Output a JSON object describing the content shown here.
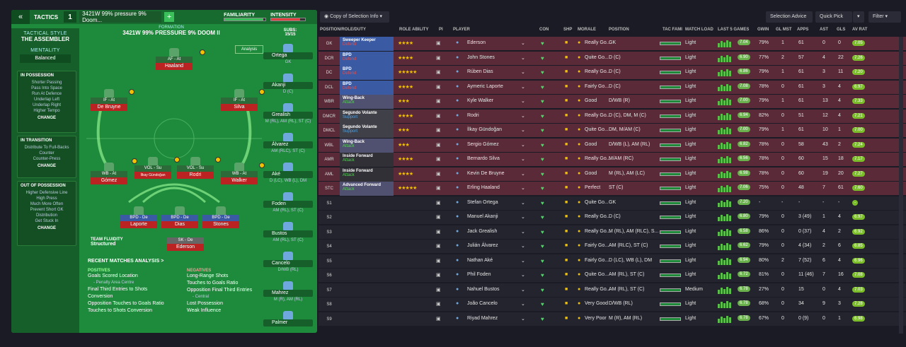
{
  "header": {
    "back_icon": "double-chevron-left-icon",
    "tactics_label": "TACTICS",
    "slot_number": "1",
    "tactic_name": "3421W 99% pressure 9% Doom...",
    "add_label": "+",
    "familiarity_label": "FAMILIARITY",
    "intensity_label": "INTENSITY",
    "familiarity_level": 0.95,
    "intensity_level": 0.85
  },
  "side": {
    "tactical_style_label": "TACTICAL STYLE",
    "tactical_style_value": "THE ASSEMBLER",
    "mentality_label": "MENTALITY",
    "mentality_value": "Balanced",
    "in_possession_title": "IN POSSESSION",
    "in_possession_items": [
      "Shorter Passing",
      "Pass Into Space",
      "Run At Defence",
      "Underlap Left",
      "Underlap Right",
      "Higher Tempo"
    ],
    "in_transition_title": "IN TRANSITION",
    "in_transition_items": [
      "Distribute To Full-Backs",
      "Counter",
      "Counter-Press"
    ],
    "out_possession_title": "OUT OF POSSESSION",
    "out_possession_items": [
      "Higher Defensive Line",
      "High Press",
      "Much More Often",
      "Prevent Short GK",
      "Distribution",
      "Get Stuck In"
    ],
    "change_label": "CHANGE"
  },
  "formation": {
    "label": "FORMATION",
    "name": "3421W 99% PRESSURE 9% DOOM II",
    "analysis_label": "Analysis",
    "team_fluidity_label": "TEAM FLUIDITY",
    "team_fluidity_value": "Structured",
    "players": [
      {
        "role": "AF - At",
        "name": "Haaland"
      },
      {
        "role": "IF - At",
        "name": "De Bruyne"
      },
      {
        "role": "IF - At",
        "name": "Silva"
      },
      {
        "role": "WB - At",
        "name": "Gómez"
      },
      {
        "role": "VOL - Su",
        "name": "İlkay Gündoğan"
      },
      {
        "role": "VOL - Su",
        "name": "Rodri"
      },
      {
        "role": "WB - At",
        "name": "Walker"
      },
      {
        "role": "BPD - De",
        "name": "Laporte"
      },
      {
        "role": "BPD - De",
        "name": "Dias"
      },
      {
        "role": "BPD - De",
        "name": "Stones"
      },
      {
        "role": "SK - De",
        "name": "Ederson"
      }
    ]
  },
  "subs": {
    "label": "SUBS:",
    "count": "15/15",
    "items": [
      {
        "name": "Ortega",
        "pos": "GK"
      },
      {
        "name": "Akanji",
        "pos": "D (C)"
      },
      {
        "name": "Grealish",
        "pos": "M (RL), AM (RL), ST (C)"
      },
      {
        "name": "Álvarez",
        "pos": "AM (RLC), ST (C)"
      },
      {
        "name": "Aké",
        "pos": "D (LC), WB (L), DM"
      },
      {
        "name": "Foden",
        "pos": "AM (RL), ST (C)"
      },
      {
        "name": "Bustos",
        "pos": "AM (RL), ST (C)"
      },
      {
        "name": "Cancelo",
        "pos": "D/WB (RL)"
      },
      {
        "name": "Mahrez",
        "pos": "M (R), AM (RL)"
      },
      {
        "name": "Palmer",
        "pos": ""
      }
    ]
  },
  "analysis": {
    "title": "RECENT MATCHES ANALYSIS >",
    "positives_label": "POSITIVES",
    "positives": [
      "Goals Scored Location",
      "- Penalty Area Centre",
      "Final Third Entries to Shots Conversion",
      "Opposition Touches to Goals Ratio",
      "Touches to Shots Conversion"
    ],
    "negatives_label": "NEGATIVES",
    "negatives": [
      "Long-Range Shots",
      "Touches to Goals Ratio",
      "Opposition Final Third Entries",
      "- Central",
      "Lost Possession",
      "Weak Influence"
    ]
  },
  "toolbar": {
    "view_label": "Copy of Selection Info",
    "selection_advice": "Selection Advice",
    "quick_pick": "Quick Pick",
    "filter": "Filter"
  },
  "columns": [
    "POSITION/ROLE/DUTY",
    "ROLE ABILITY",
    "PI",
    "PLAYER",
    "CON",
    "SHP",
    "MORALE",
    "POSITION",
    "TAC FAMI",
    "MATCH LOAD",
    "LAST 5 GAMES",
    "GWIN",
    "GL MST",
    "APPS",
    "AST",
    "GLS",
    "AV RAT"
  ],
  "rows": [
    {
      "pos": "GK",
      "role": "Sweeper Keeper",
      "duty": "Defend",
      "stars": "★★★★",
      "player": "Ederson",
      "morale": "Really Go...",
      "position": "GK",
      "load": "Light",
      "form": "7.04",
      "gwin": "79%",
      "glmst": "1",
      "apps": "61",
      "ast": "0",
      "gls": "0",
      "avrat": "7.05"
    },
    {
      "pos": "DCR",
      "role": "BPD",
      "duty": "Defend",
      "stars": "★★★★",
      "player": "John Stones",
      "morale": "Quite Go...",
      "position": "D (C)",
      "load": "Light",
      "form": "6.90",
      "gwin": "77%",
      "glmst": "2",
      "apps": "57",
      "ast": "4",
      "gls": "22",
      "avrat": "7.26"
    },
    {
      "pos": "DC",
      "role": "BPD",
      "duty": "Defend",
      "stars": "★★★★★",
      "player": "Rúben Dias",
      "morale": "Really Go...",
      "position": "D (C)",
      "load": "Light",
      "form": "6.86",
      "gwin": "79%",
      "glmst": "1",
      "apps": "61",
      "ast": "3",
      "gls": "11",
      "avrat": "7.20"
    },
    {
      "pos": "DCL",
      "role": "BPD",
      "duty": "Defend",
      "stars": "★★★★",
      "player": "Aymeric Laporte",
      "morale": "Fairly Go...",
      "position": "D (C)",
      "load": "Light",
      "form": "7.08",
      "gwin": "78%",
      "glmst": "0",
      "apps": "61",
      "ast": "3",
      "gls": "4",
      "avrat": "6.97"
    },
    {
      "pos": "WBR",
      "role": "Wing-Back",
      "duty": "Attack",
      "stars": "★★★",
      "player": "Kyle Walker",
      "morale": "Good",
      "position": "D/WB (R)",
      "load": "Light",
      "form": "7.00",
      "gwin": "79%",
      "glmst": "1",
      "apps": "61",
      "ast": "13",
      "gls": "4",
      "avrat": "7.33"
    },
    {
      "pos": "DMCR",
      "role": "Segundo Volante",
      "duty": "Support",
      "stars": "★★★★",
      "player": "Rodri",
      "morale": "Really Go...",
      "position": "D (C), DM, M (C)",
      "load": "Light",
      "form": "6.94",
      "gwin": "82%",
      "glmst": "0",
      "apps": "51",
      "ast": "12",
      "gls": "4",
      "avrat": "7.21"
    },
    {
      "pos": "DMCL",
      "role": "Segundo Volante",
      "duty": "Support",
      "stars": "★★★",
      "player": "İlkay Gündoğan",
      "morale": "Quite Go...",
      "position": "DM, M/AM (C)",
      "load": "Light",
      "form": "7.00",
      "gwin": "79%",
      "glmst": "1",
      "apps": "61",
      "ast": "10",
      "gls": "1",
      "avrat": "7.00"
    },
    {
      "pos": "WBL",
      "role": "Wing-Back",
      "duty": "Attack",
      "stars": "★★★",
      "player": "Sergio Gómez",
      "morale": "Good",
      "position": "D/WB (L), AM (RL)",
      "load": "Light",
      "form": "6.82",
      "gwin": "78%",
      "glmst": "0",
      "apps": "58",
      "ast": "43",
      "gls": "2",
      "avrat": "7.24"
    },
    {
      "pos": "AMR",
      "role": "Inside Forward",
      "duty": "Attack",
      "stars": "★★★★",
      "player": "Bernardo Silva",
      "morale": "Really Go...",
      "position": "M/AM (RC)",
      "load": "Light",
      "form": "6.56",
      "gwin": "78%",
      "glmst": "0",
      "apps": "60",
      "ast": "15",
      "gls": "18",
      "avrat": "7.17"
    },
    {
      "pos": "AML",
      "role": "Inside Forward",
      "duty": "Attack",
      "stars": "★★★★",
      "player": "Kevin De Bruyne",
      "morale": "Good",
      "position": "M (RL), AM (LC)",
      "load": "Light",
      "form": "6.98",
      "gwin": "78%",
      "glmst": "0",
      "apps": "60",
      "ast": "19",
      "gls": "20",
      "avrat": "7.27"
    },
    {
      "pos": "STC",
      "role": "Advanced Forward",
      "duty": "Attack",
      "stars": "★★★★★",
      "player": "Erling Haaland",
      "morale": "Perfect",
      "position": "ST (C)",
      "load": "Light",
      "form": "7.06",
      "gwin": "75%",
      "glmst": "0",
      "apps": "48",
      "ast": "7",
      "gls": "61",
      "avrat": "7.60"
    },
    {
      "pos": "S1",
      "role": "",
      "duty": "",
      "stars": "",
      "player": "Stefan Ortega",
      "morale": "Quite Go...",
      "position": "GK",
      "load": "Light",
      "form": "7.20",
      "gwin": "-",
      "glmst": "-",
      "apps": "-",
      "ast": "-",
      "gls": "-",
      "avrat": "-"
    },
    {
      "pos": "S2",
      "role": "",
      "duty": "",
      "stars": "",
      "player": "Manuel Akanji",
      "morale": "Really Go...",
      "position": "D (C)",
      "load": "Light",
      "form": "6.80",
      "gwin": "79%",
      "glmst": "0",
      "apps": "3 (49)",
      "ast": "1",
      "gls": "4",
      "avrat": "6.97"
    },
    {
      "pos": "S3",
      "role": "",
      "duty": "",
      "stars": "",
      "player": "Jack Grealish",
      "morale": "Really Go...",
      "position": "M (RL), AM (RLC), S...",
      "load": "Light",
      "form": "6.58",
      "gwin": "86%",
      "glmst": "0",
      "apps": "0 (37)",
      "ast": "4",
      "gls": "2",
      "avrat": "6.92"
    },
    {
      "pos": "S4",
      "role": "",
      "duty": "",
      "stars": "",
      "player": "Julián Álvarez",
      "morale": "Fairly Go...",
      "position": "AM (RLC), ST (C)",
      "load": "Light",
      "form": "6.62",
      "gwin": "79%",
      "glmst": "0",
      "apps": "4 (34)",
      "ast": "2",
      "gls": "6",
      "avrat": "6.85"
    },
    {
      "pos": "S5",
      "role": "",
      "duty": "",
      "stars": "",
      "player": "Nathan Aké",
      "morale": "Fairly Go...",
      "position": "D (LC), WB (L), DM",
      "load": "Light",
      "form": "6.94",
      "gwin": "80%",
      "glmst": "2",
      "apps": "7 (52)",
      "ast": "6",
      "gls": "4",
      "avrat": "6.96"
    },
    {
      "pos": "S6",
      "role": "",
      "duty": "",
      "stars": "",
      "player": "Phil Foden",
      "morale": "Quite Go...",
      "position": "AM (RL), ST (C)",
      "load": "Light",
      "form": "6.72",
      "gwin": "81%",
      "glmst": "0",
      "apps": "11 (46)",
      "ast": "7",
      "gls": "16",
      "avrat": "7.08"
    },
    {
      "pos": "S7",
      "role": "",
      "duty": "",
      "stars": "",
      "player": "Nahuel Bustos",
      "morale": "Really Go...",
      "position": "AM (RL), ST (C)",
      "load": "Medium",
      "form": "6.78",
      "gwin": "27%",
      "glmst": "0",
      "apps": "15",
      "ast": "0",
      "gls": "4",
      "avrat": "7.03"
    },
    {
      "pos": "S8",
      "role": "",
      "duty": "",
      "stars": "",
      "player": "João Cancelo",
      "morale": "Very Good",
      "position": "D/WB (RL)",
      "load": "Light",
      "form": "6.78",
      "gwin": "68%",
      "glmst": "0",
      "apps": "34",
      "ast": "9",
      "gls": "3",
      "avrat": "7.28"
    },
    {
      "pos": "S9",
      "role": "",
      "duty": "",
      "stars": "",
      "player": "Riyad Mahrez",
      "morale": "Very Poor",
      "position": "M (R), AM (RL)",
      "load": "Light",
      "form": "6.78",
      "gwin": "67%",
      "glmst": "0",
      "apps": "0 (9)",
      "ast": "0",
      "gls": "1",
      "avrat": "6.98"
    }
  ],
  "colors": {
    "left_panel": "#1e8a3c",
    "selected_row": "#5a2a38",
    "accent": "#3bbf5a"
  }
}
